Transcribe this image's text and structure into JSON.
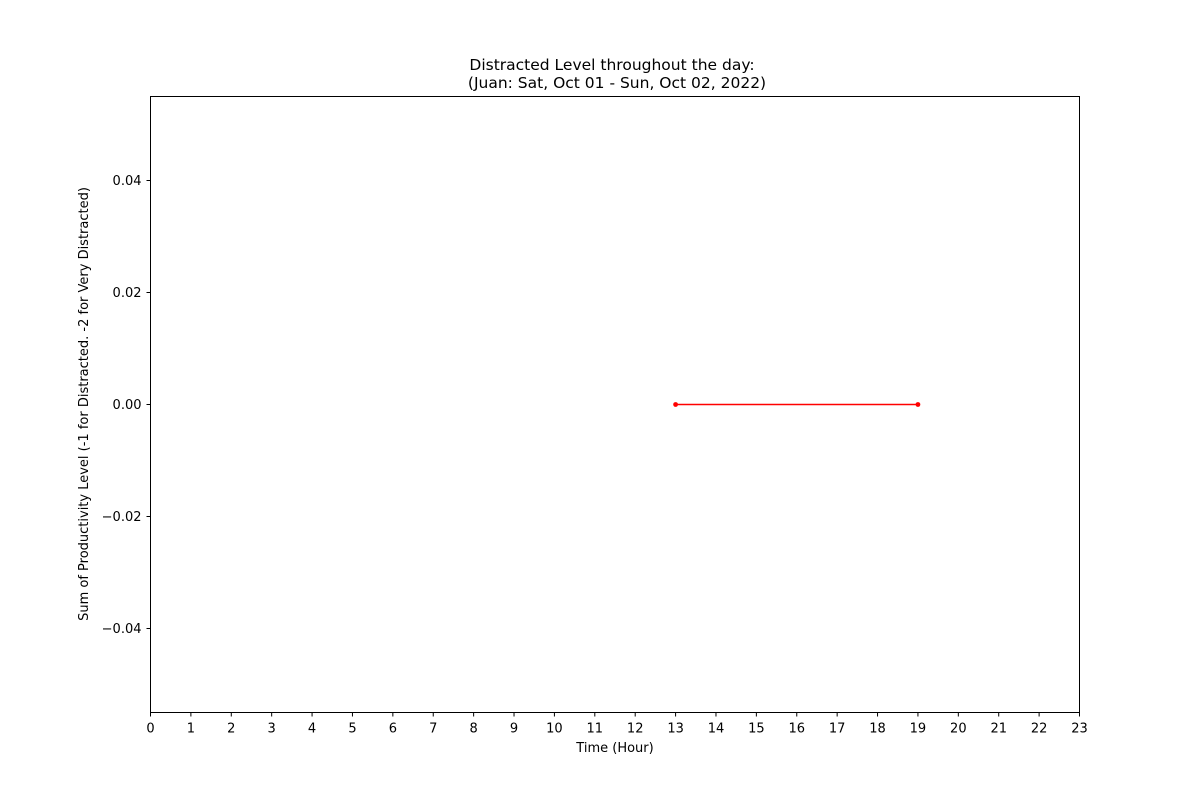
{
  "chart_data": {
    "type": "line",
    "title_line1": "Distracted Level throughout the day:",
    "title_line2": "(Juan: Sat, Oct 01 - Sun, Oct 02, 2022)",
    "xlabel": "Time (Hour)",
    "ylabel": "Sum of Productivity Level (-1 for Distracted. -2 for Very Distracted)",
    "xlim": [
      0,
      23
    ],
    "ylim": [
      -0.055,
      0.055
    ],
    "x_ticks": [
      0,
      1,
      2,
      3,
      4,
      5,
      6,
      7,
      8,
      9,
      10,
      11,
      12,
      13,
      14,
      15,
      16,
      17,
      18,
      19,
      20,
      21,
      22,
      23
    ],
    "y_ticks": [
      -0.04,
      -0.02,
      0.0,
      0.02,
      0.04
    ],
    "y_tick_labels": [
      "−0.04",
      "−0.02",
      "0.00",
      "0.02",
      "0.04"
    ],
    "grid": false,
    "series": [
      {
        "color": "#ff0000",
        "marker": "dot",
        "x": [
          13,
          19
        ],
        "y": [
          0,
          0
        ]
      }
    ]
  }
}
